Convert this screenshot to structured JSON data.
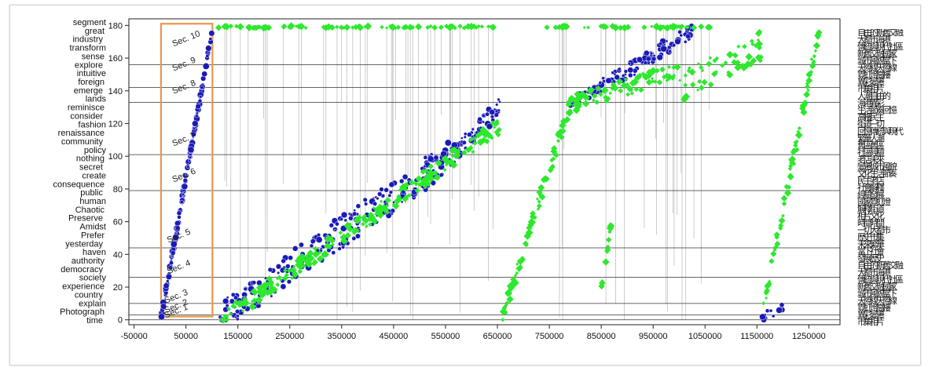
{
  "chart_data": {
    "type": "scatter",
    "x_ticks": [
      -50000,
      50000,
      150000,
      250000,
      350000,
      450000,
      550000,
      650000,
      750000,
      850000,
      950000,
      1050000,
      1150000,
      1250000
    ],
    "y_ticks": [
      0,
      20,
      40,
      60,
      80,
      100,
      120,
      140,
      160,
      180
    ],
    "xlim": [
      -60000,
      1310000
    ],
    "ylim": [
      -3,
      184
    ],
    "grid": "horizontal section lines",
    "section_lines_y": [
      0,
      3,
      10,
      26,
      44,
      79,
      101,
      133,
      142,
      156
    ],
    "section_labels": [
      {
        "text": "Sec. 10",
        "x": 20000,
        "y": 167
      },
      {
        "text": "Sec. 9",
        "x": 20000,
        "y": 152
      },
      {
        "text": "Sec. 8",
        "x": 20000,
        "y": 138
      },
      {
        "text": "Sec. 7",
        "x": 20000,
        "y": 106
      },
      {
        "text": "Sec. 6",
        "x": 20000,
        "y": 84
      },
      {
        "text": "Sec. 5",
        "x": 10000,
        "y": 47
      },
      {
        "text": "Sec. 4",
        "x": 10000,
        "y": 28
      },
      {
        "text": "Sec. 3",
        "x": 5000,
        "y": 10
      },
      {
        "text": "Sec. 2",
        "x": 5000,
        "y": 4
      },
      {
        "text": "Sec. 1",
        "x": 5000,
        "y": 1
      }
    ],
    "highlight_box": {
      "x": [
        2000,
        101000
      ],
      "y": [
        2,
        181
      ],
      "color": "#e8954a"
    },
    "series": [
      {
        "marker": "circle",
        "color": "#1a1ab8",
        "segments": [
          {
            "x0": 2000,
            "x1": 100000,
            "y0": 1,
            "y1": 176,
            "n": 160,
            "jitter": 2
          },
          {
            "x0": 115000,
            "x1": 560000,
            "y0": 2,
            "y1": 100,
            "n": 240,
            "jitter": 10
          },
          {
            "x0": 560000,
            "x1": 655000,
            "y0": 100,
            "y1": 130,
            "n": 55,
            "jitter": 6
          },
          {
            "x0": 790000,
            "x1": 880000,
            "y0": 130,
            "y1": 150,
            "n": 40,
            "jitter": 4
          },
          {
            "x0": 880000,
            "x1": 1030000,
            "y0": 148,
            "y1": 178,
            "n": 70,
            "jitter": 5
          },
          {
            "x0": 1160000,
            "x1": 1200000,
            "y0": 1,
            "y1": 8,
            "n": 15,
            "jitter": 3
          }
        ]
      },
      {
        "marker": "diamond",
        "color": "#2ee82e",
        "segments": [
          {
            "x0": 105000,
            "x1": 650000,
            "y0": 179,
            "y1": 179,
            "n": 90,
            "jitter": 0.6
          },
          {
            "x0": 740000,
            "x1": 1060000,
            "y0": 179,
            "y1": 179,
            "n": 55,
            "jitter": 0.6
          },
          {
            "x0": 120000,
            "x1": 660000,
            "y0": 0,
            "y1": 120,
            "n": 230,
            "jitter": 5
          },
          {
            "x0": 660000,
            "x1": 790000,
            "y0": 2,
            "y1": 132,
            "n": 85,
            "jitter": 5
          },
          {
            "x0": 790000,
            "x1": 1000000,
            "y0": 132,
            "y1": 152,
            "n": 80,
            "jitter": 5
          },
          {
            "x0": 1000000,
            "x1": 1160000,
            "y0": 142,
            "y1": 168,
            "n": 55,
            "jitter": 9
          },
          {
            "x0": 1160000,
            "x1": 1270000,
            "y0": 2,
            "y1": 178,
            "n": 75,
            "jitter": 5
          },
          {
            "x0": 850000,
            "x1": 870000,
            "y0": 18,
            "y1": 60,
            "n": 12,
            "jitter": 2
          }
        ]
      }
    ],
    "y_tick_labels": [
      "segment",
      "great",
      "industry",
      "transform",
      "sense",
      "explore",
      "intuitive",
      "foreign",
      "emerge",
      "lands",
      "reminisce",
      "consider",
      "fashion",
      "renaissance",
      "community",
      "policy",
      "nothing",
      "secret",
      "create",
      "consequence",
      "public",
      "human",
      "Chaotic",
      "Preserve",
      "Amidst",
      "Prefer",
      "yesterday",
      "haven",
      "authority",
      "democracy",
      "society",
      "experience",
      "country",
      "explain",
      "Photograph",
      "time"
    ],
    "right_tick_labels": [
      "自由的",
      "大都市",
      "傳統與現代",
      "新舊交融",
      "城市風貌",
      "天際線",
      "霓虹燈",
      "異彩",
      "市集",
      "人潮",
      "海港",
      "生活節奏",
      "高樓",
      "街道",
      "回憶",
      "繁華",
      "舊區",
      "社區",
      "老店",
      "變遷",
      "文化",
      "民主",
      "社會",
      "經驗",
      "國家",
      "解釋",
      "相片",
      "時間",
      "一切",
      "歷史",
      "未來",
      "當下",
      "發展"
    ]
  }
}
